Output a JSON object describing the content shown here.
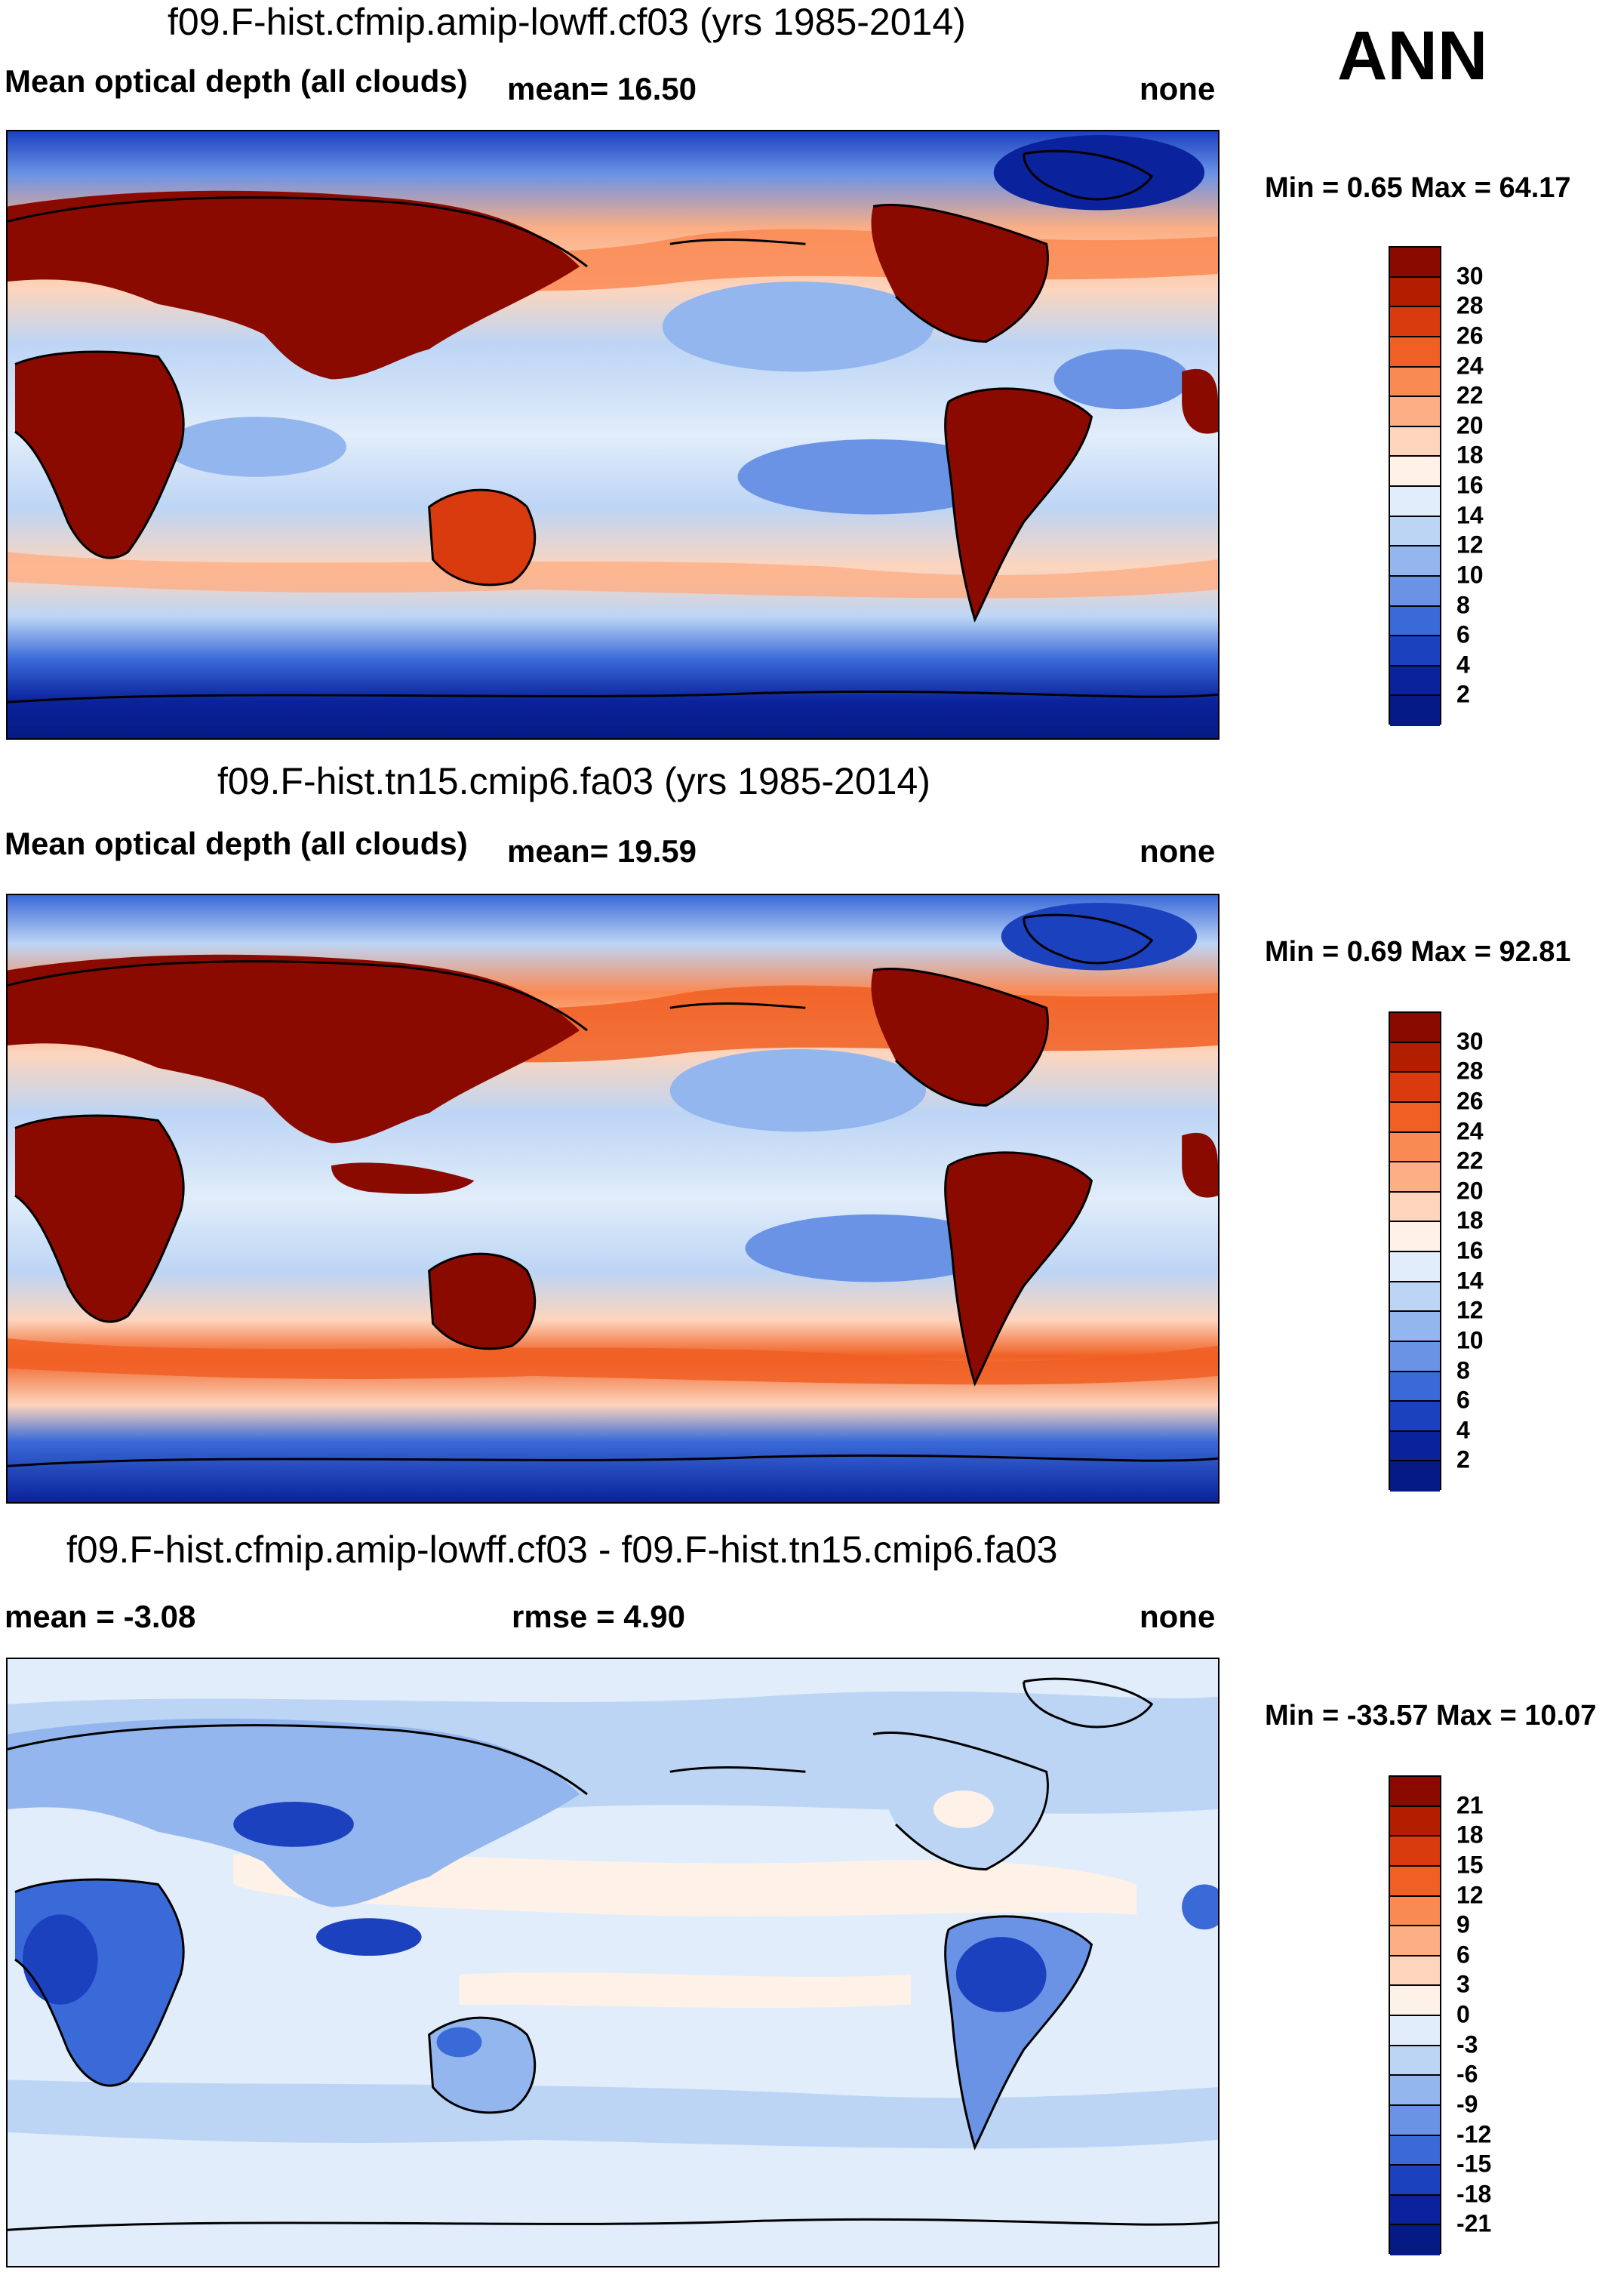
{
  "header": {
    "season": "ANN"
  },
  "panels": [
    {
      "title": "f09.F-hist.cfmip.amip-lowff.cf03 (yrs 1985-2014)",
      "left_label": "Mean optical depth (all clouds)",
      "center_label": "mean=  16.50",
      "right_label": "none",
      "minmax": "Min =   0.65 Max =  64.17",
      "colorbar": {
        "labels": [
          "30",
          "28",
          "26",
          "24",
          "22",
          "20",
          "18",
          "16",
          "14",
          "12",
          "10",
          "8",
          "6",
          "4",
          "2"
        ],
        "colors": [
          "#8b0a00",
          "#b41e00",
          "#d93a0e",
          "#f05f23",
          "#fa8a53",
          "#fcae84",
          "#fdd5bd",
          "#fdf1e8",
          "#e1edfa",
          "#bdd5f5",
          "#93b6ee",
          "#6a93e6",
          "#3a6ad8",
          "#1b41bf",
          "#0a229b",
          "#061a86"
        ]
      }
    },
    {
      "title": "f09.F-hist.tn15.cmip6.fa03 (yrs 1985-2014)",
      "left_label": "Mean optical depth (all clouds)",
      "center_label": "mean=  19.59",
      "right_label": "none",
      "minmax": "Min =   0.69 Max =  92.81",
      "colorbar": {
        "labels": [
          "30",
          "28",
          "26",
          "24",
          "22",
          "20",
          "18",
          "16",
          "14",
          "12",
          "10",
          "8",
          "6",
          "4",
          "2"
        ],
        "colors": [
          "#8b0a00",
          "#b41e00",
          "#d93a0e",
          "#f05f23",
          "#fa8a53",
          "#fcae84",
          "#fdd5bd",
          "#fdf1e8",
          "#e1edfa",
          "#bdd5f5",
          "#93b6ee",
          "#6a93e6",
          "#3a6ad8",
          "#1b41bf",
          "#0a229b",
          "#061a86"
        ]
      }
    },
    {
      "title": "f09.F-hist.cfmip.amip-lowff.cf03 - f09.F-hist.tn15.cmip6.fa03",
      "left_label": "mean =  -3.08",
      "center_label": "rmse =    4.90",
      "right_label": "none",
      "minmax": "Min = -33.57 Max =  10.07",
      "colorbar": {
        "labels": [
          "21",
          "18",
          "15",
          "12",
          "9",
          "6",
          "3",
          "0",
          "-3",
          "-6",
          "-9",
          "-12",
          "-15",
          "-18",
          "-21"
        ],
        "colors": [
          "#8b0a00",
          "#b41e00",
          "#d93a0e",
          "#f05f23",
          "#fa8a53",
          "#fcae84",
          "#fdd5bd",
          "#fdf1e8",
          "#e1edfa",
          "#bdd5f5",
          "#93b6ee",
          "#6a93e6",
          "#3a6ad8",
          "#1b41bf",
          "#0a229b",
          "#061a86"
        ]
      }
    }
  ]
}
